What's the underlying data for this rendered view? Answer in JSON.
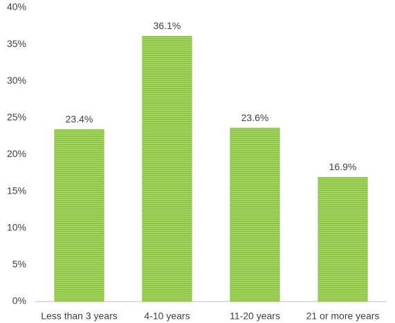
{
  "chart_data": {
    "type": "bar",
    "categories": [
      "Less than 3 years",
      "4-10 years",
      "11-20 years",
      "21 or more years"
    ],
    "values": [
      23.4,
      36.1,
      23.6,
      16.9
    ],
    "value_labels": [
      "23.4%",
      "36.1%",
      "23.6%",
      "16.9%"
    ],
    "color": "#8cc63e",
    "ylim": [
      0,
      40
    ],
    "yticks": [
      {
        "value": 0,
        "label": "0%"
      },
      {
        "value": 5,
        "label": "5%"
      },
      {
        "value": 10,
        "label": "10%"
      },
      {
        "value": 15,
        "label": "15%"
      },
      {
        "value": 20,
        "label": "20%"
      },
      {
        "value": 25,
        "label": "25%"
      },
      {
        "value": 30,
        "label": "30%"
      },
      {
        "value": 35,
        "label": "35%"
      },
      {
        "value": 40,
        "label": "40%"
      }
    ],
    "grid": false
  }
}
